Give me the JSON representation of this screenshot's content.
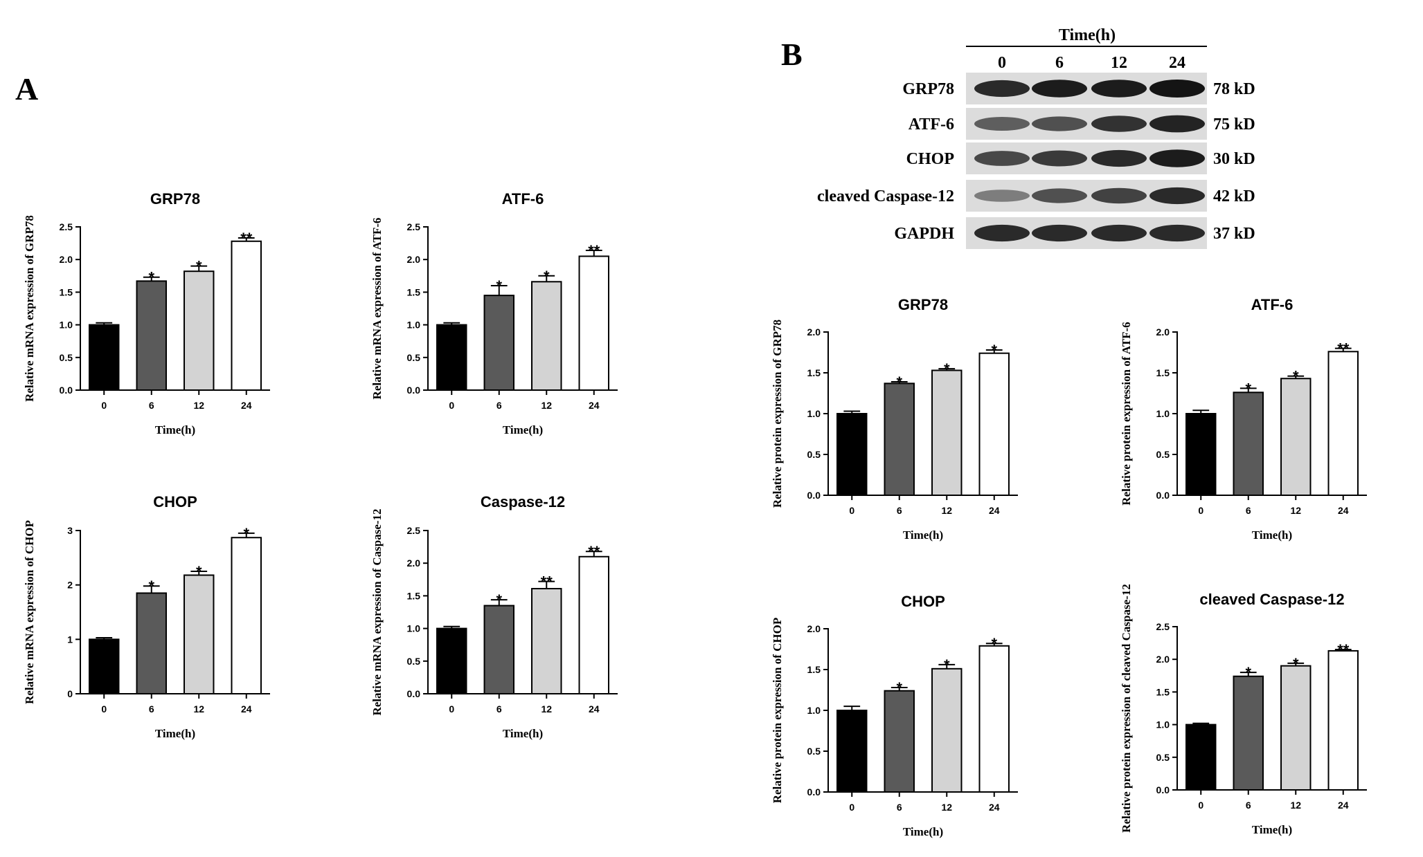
{
  "panels": {
    "a_label": "A",
    "b_label": "B"
  },
  "western_blot": {
    "header": "Time(h)",
    "lanes": [
      "0",
      "6",
      "12",
      "24"
    ],
    "rows": [
      {
        "protein": "GRP78",
        "size": "78 kD",
        "intensities": [
          0.85,
          0.95,
          0.95,
          1.0
        ]
      },
      {
        "protein": "ATF-6",
        "size": "75 kD",
        "intensities": [
          0.5,
          0.6,
          0.8,
          0.9
        ]
      },
      {
        "protein": "CHOP",
        "size": "30 kD",
        "intensities": [
          0.65,
          0.75,
          0.85,
          0.95
        ]
      },
      {
        "protein": "cleaved Caspase-12",
        "size": "42 kD",
        "intensities": [
          0.3,
          0.6,
          0.7,
          0.85
        ]
      },
      {
        "protein": "GAPDH",
        "size": "37 kD",
        "intensities": [
          0.85,
          0.85,
          0.85,
          0.85
        ]
      }
    ],
    "colors": {
      "bg": "#dcdcdc",
      "band": "#141414"
    }
  },
  "chart_data": [
    {
      "type": "bar",
      "title": "GRP78",
      "xlabel": "Time(h)",
      "ylabel": "Relative mRNA expression of GRP78",
      "categories": [
        "0",
        "6",
        "12",
        "24"
      ],
      "values": [
        1.0,
        1.67,
        1.82,
        2.28
      ],
      "errors": [
        0.03,
        0.06,
        0.08,
        0.05
      ],
      "sig": [
        "",
        "*",
        "*",
        "**"
      ],
      "ylim": [
        0,
        2.5
      ],
      "yticks": [
        "0.0",
        "0.5",
        "1.0",
        "1.5",
        "2.0",
        "2.5"
      ]
    },
    {
      "type": "bar",
      "title": "ATF-6",
      "xlabel": "Time(h)",
      "ylabel": "Relative mRNA expression of ATF-6",
      "categories": [
        "0",
        "6",
        "12",
        "24"
      ],
      "values": [
        1.0,
        1.45,
        1.66,
        2.05
      ],
      "errors": [
        0.03,
        0.15,
        0.09,
        0.09
      ],
      "sig": [
        "",
        "*",
        "*",
        "**"
      ],
      "ylim": [
        0,
        2.5
      ],
      "yticks": [
        "0.0",
        "0.5",
        "1.0",
        "1.5",
        "2.0",
        "2.5"
      ]
    },
    {
      "type": "bar",
      "title": "CHOP",
      "xlabel": "Time(h)",
      "ylabel": "Relative mRNA expression of CHOP",
      "categories": [
        "0",
        "6",
        "12",
        "24"
      ],
      "values": [
        1.0,
        1.85,
        2.18,
        2.87
      ],
      "errors": [
        0.03,
        0.13,
        0.07,
        0.08
      ],
      "sig": [
        "",
        "*",
        "*",
        "*"
      ],
      "ylim": [
        0,
        3
      ],
      "yticks": [
        "0",
        "1",
        "2",
        "3"
      ]
    },
    {
      "type": "bar",
      "title": "Caspase-12",
      "xlabel": "Time(h)",
      "ylabel": "Relative mRNA expression of Caspase-12",
      "categories": [
        "0",
        "6",
        "12",
        "24"
      ],
      "values": [
        1.0,
        1.35,
        1.61,
        2.1
      ],
      "errors": [
        0.03,
        0.09,
        0.11,
        0.08
      ],
      "sig": [
        "",
        "*",
        "**",
        "**"
      ],
      "ylim": [
        0,
        2.5
      ],
      "yticks": [
        "0.0",
        "0.5",
        "1.0",
        "1.5",
        "2.0",
        "2.5"
      ]
    },
    {
      "type": "bar",
      "title": "GRP78",
      "xlabel": "Time(h)",
      "ylabel": "Relative protein expression of GRP78",
      "categories": [
        "0",
        "6",
        "12",
        "24"
      ],
      "values": [
        1.0,
        1.37,
        1.53,
        1.74
      ],
      "errors": [
        0.03,
        0.02,
        0.02,
        0.04
      ],
      "sig": [
        "",
        "*",
        "*",
        "*"
      ],
      "ylim": [
        0,
        2.0
      ],
      "yticks": [
        "0.0",
        "0.5",
        "1.0",
        "1.5",
        "2.0"
      ]
    },
    {
      "type": "bar",
      "title": "ATF-6",
      "xlabel": "Time(h)",
      "ylabel": "Relative protein expression of ATF-6",
      "categories": [
        "0",
        "6",
        "12",
        "24"
      ],
      "values": [
        1.0,
        1.26,
        1.43,
        1.76
      ],
      "errors": [
        0.04,
        0.05,
        0.03,
        0.04
      ],
      "sig": [
        "",
        "*",
        "*",
        "**"
      ],
      "ylim": [
        0,
        2.0
      ],
      "yticks": [
        "0.0",
        "0.5",
        "1.0",
        "1.5",
        "2.0"
      ]
    },
    {
      "type": "bar",
      "title": "CHOP",
      "xlabel": "Time(h)",
      "ylabel": "Relative protein expression of CHOP",
      "categories": [
        "0",
        "6",
        "12",
        "24"
      ],
      "values": [
        1.0,
        1.24,
        1.51,
        1.79
      ],
      "errors": [
        0.05,
        0.04,
        0.05,
        0.03
      ],
      "sig": [
        "",
        "*",
        "*",
        "*"
      ],
      "ylim": [
        0,
        2.0
      ],
      "yticks": [
        "0.0",
        "0.5",
        "1.0",
        "1.5",
        "2.0"
      ]
    },
    {
      "type": "bar",
      "title": "cleaved Caspase-12",
      "xlabel": "Time(h)",
      "ylabel": "Relative protein expression of cleaved Caspase-12",
      "categories": [
        "0",
        "6",
        "12",
        "24"
      ],
      "values": [
        1.0,
        1.74,
        1.9,
        2.13
      ],
      "errors": [
        0.02,
        0.06,
        0.04,
        0.02
      ],
      "sig": [
        "",
        "*",
        "*",
        "**"
      ],
      "ylim": [
        0,
        2.5
      ],
      "yticks": [
        "0.0",
        "0.5",
        "1.0",
        "1.5",
        "2.0",
        "2.5"
      ]
    }
  ],
  "bar_colors": [
    "#000000",
    "#5a5a5a",
    "#d3d3d3",
    "#ffffff"
  ]
}
